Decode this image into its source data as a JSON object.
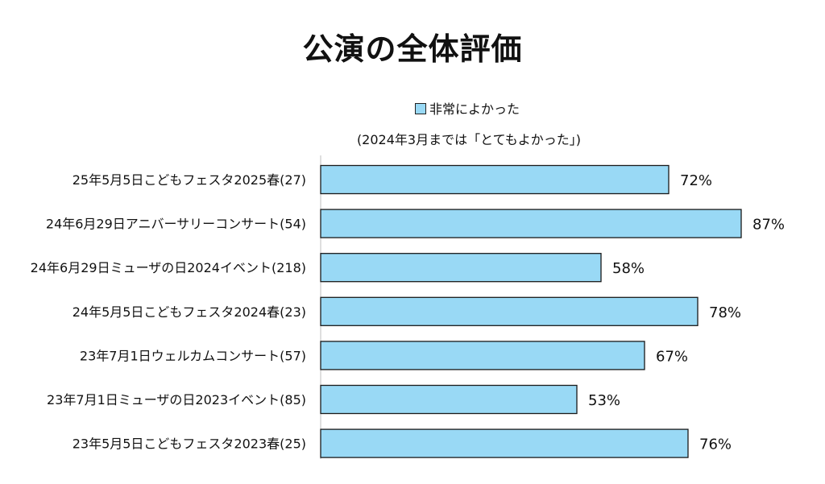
{
  "chart_data": {
    "type": "bar",
    "orientation": "horizontal",
    "title": "公演の全体評価",
    "note": "(2024年3月までは「とてもよかった」)",
    "series": [
      {
        "name": "非常によかった",
        "color": "#99d9f5",
        "values": [
          72,
          87,
          58,
          78,
          67,
          53,
          76
        ]
      }
    ],
    "categories": [
      "25年5月5日こどもフェスタ2025春(27)",
      "24年6月29日アニバーサリーコンサート(54)",
      "24年6月29日ミューザの日2024イベント(218)",
      "24年5月5日こどもフェスタ2024春(23)",
      "23年7月1日ウェルカムコンサート(57)",
      "23年7月1日ミューザの日2023イベント(85)",
      "23年5月5日こどもフェスタ2023春(25)"
    ],
    "data_labels": [
      "72%",
      "87%",
      "58%",
      "78%",
      "67%",
      "53%",
      "76%"
    ],
    "value_unit": "%",
    "xlim": [
      0,
      100
    ],
    "legend_position": "top",
    "grid": false
  }
}
